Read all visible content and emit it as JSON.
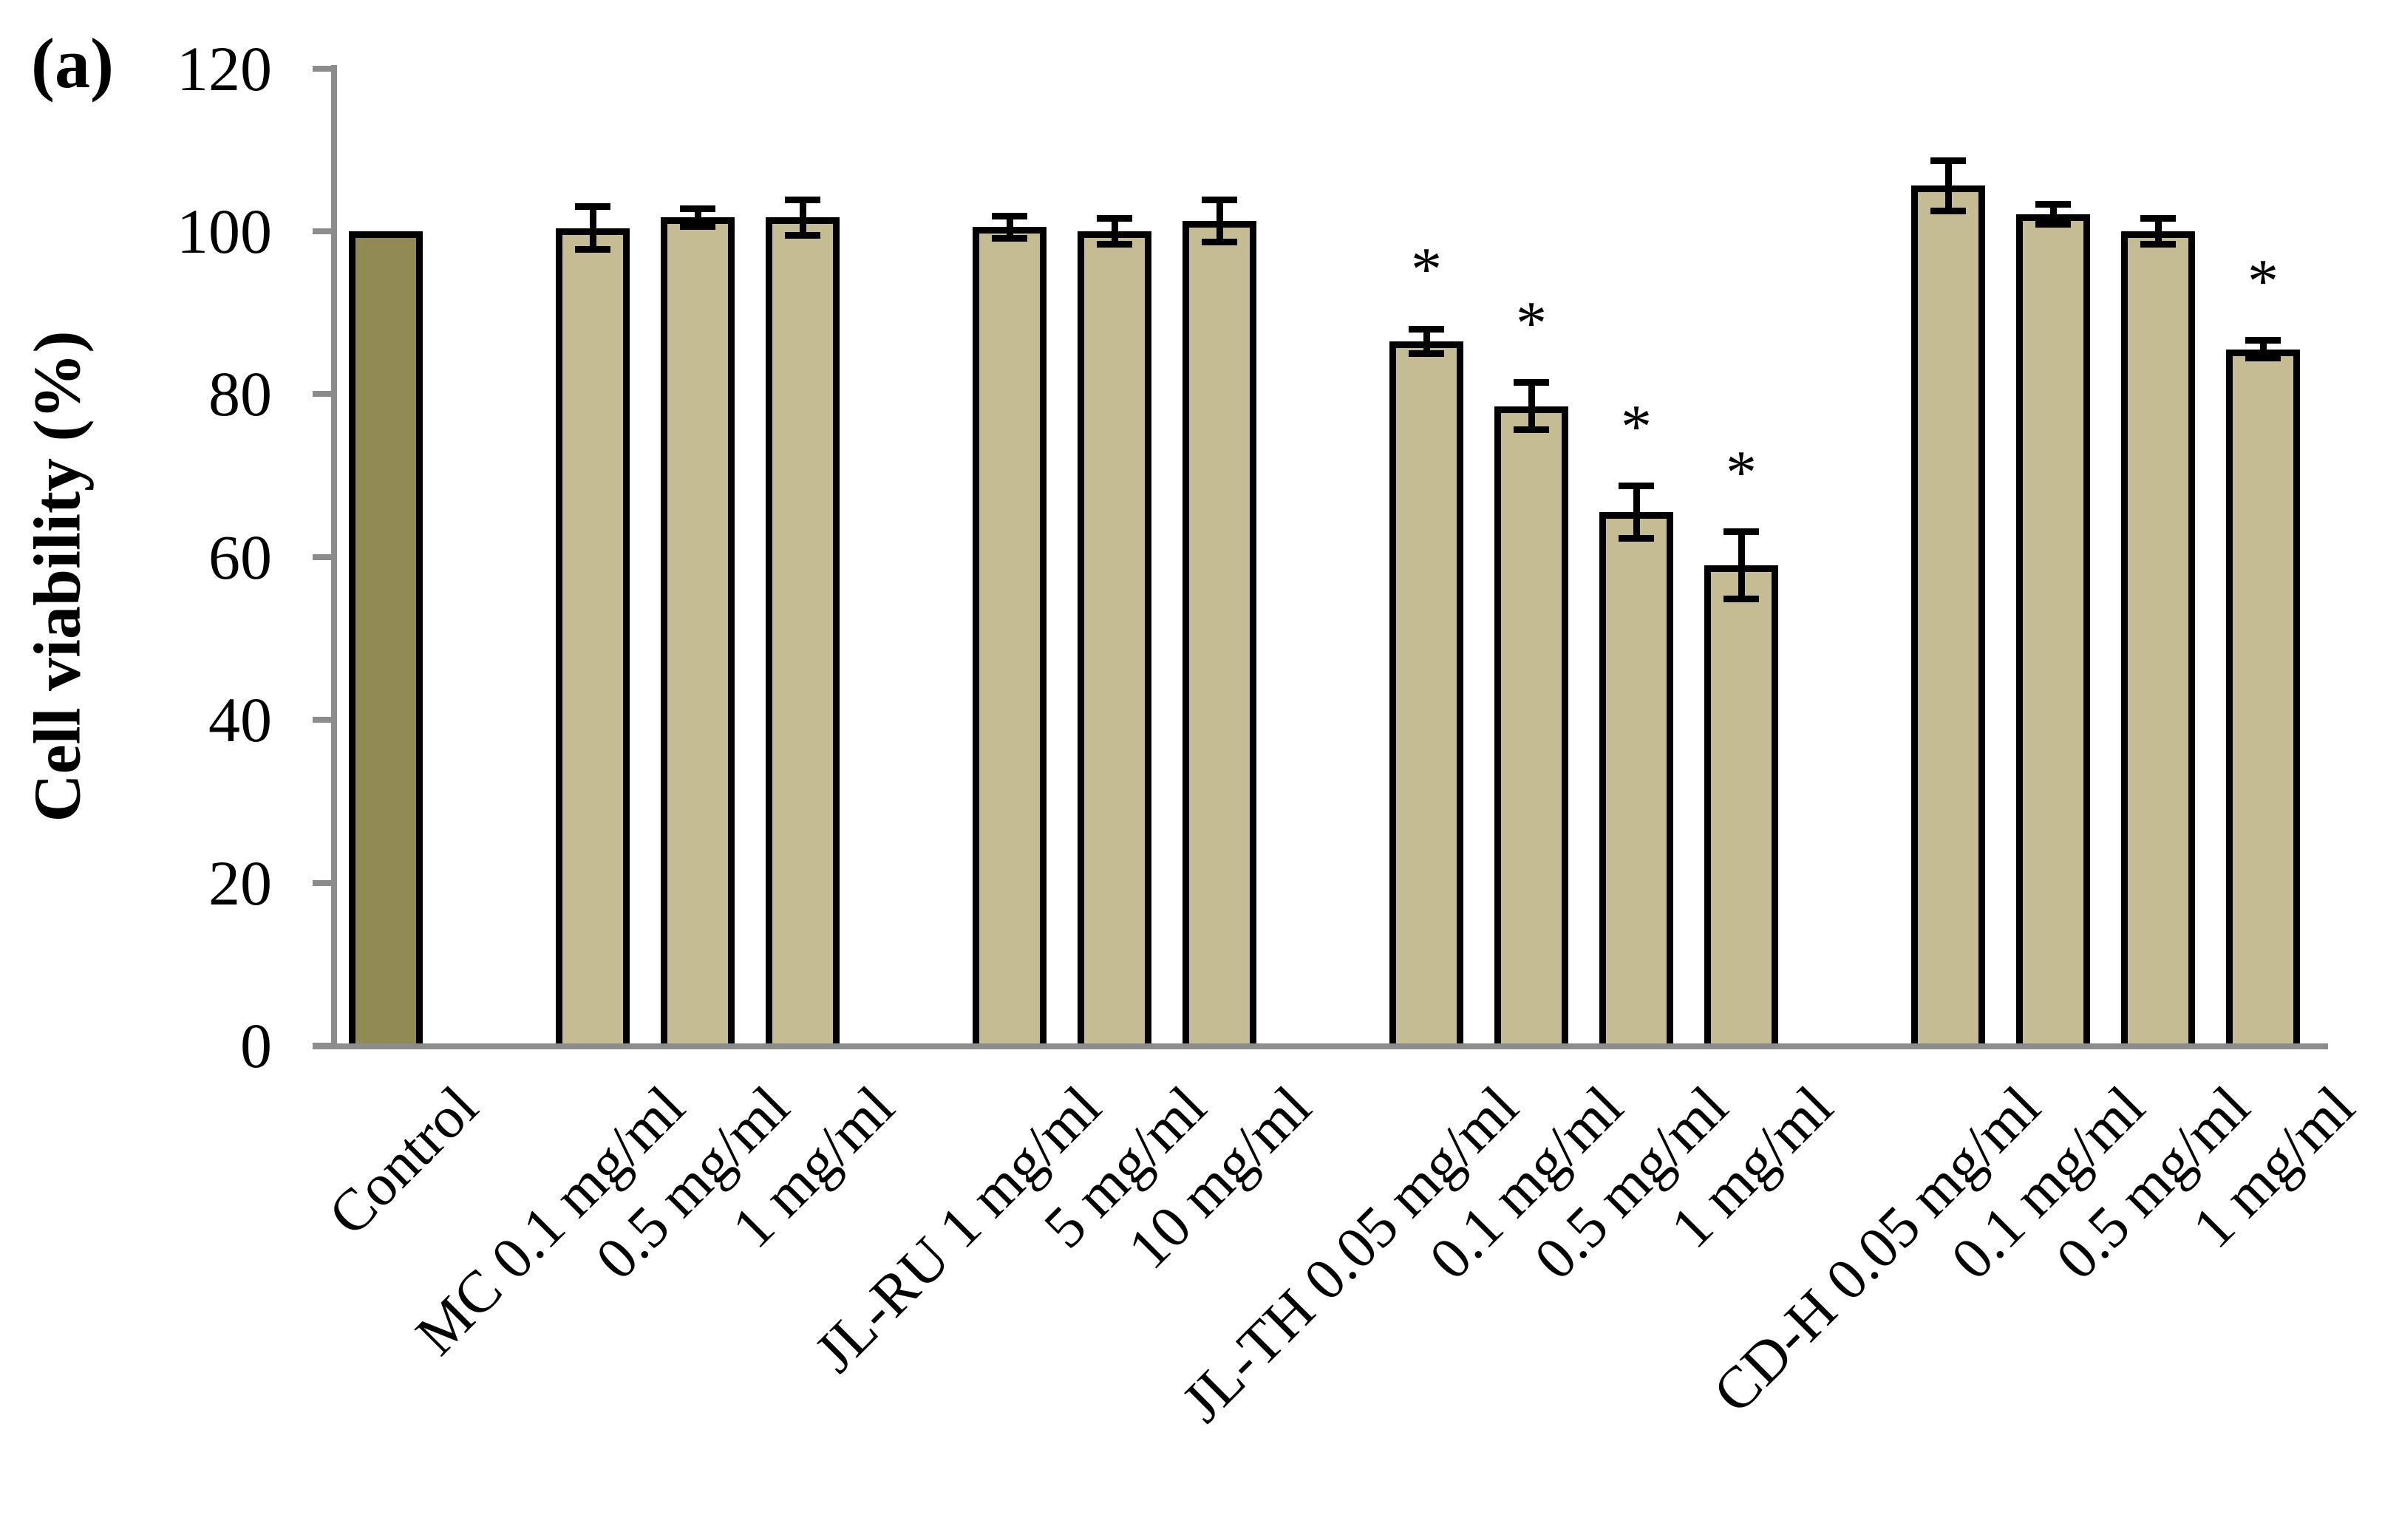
{
  "panel_label": "(a)",
  "chart_data": {
    "type": "bar",
    "title": "",
    "xlabel": "",
    "ylabel": "Cell viability (%)",
    "ylim": [
      0,
      120
    ],
    "yticks": [
      0,
      20,
      40,
      60,
      80,
      100,
      120
    ],
    "grid": false,
    "legend_position": "none",
    "categories": [
      "Control",
      "MC 0.1 mg/ml",
      "0.5 mg/ml",
      "1 mg/ml",
      "JL-RU 1 mg/ml",
      "5 mg/ml",
      "10 mg/ml",
      "JL-TH 0.05 mg/ml",
      "0.1 mg/ml",
      "0.5 mg/ml",
      "1 mg/ml",
      "CD-H 0.05 mg/ml",
      "0.1 mg/ml",
      "0.5 mg/ml",
      "1 mg/ml"
    ],
    "series": [
      {
        "name": "Cell viability (%)",
        "values": [
          100,
          100.4,
          101.7,
          101.7,
          100.5,
          100,
          101.3,
          86.5,
          78.5,
          65.5,
          59,
          105.6,
          102.1,
          100,
          85.5
        ],
        "errors": [
          0,
          2.6,
          1.1,
          2.2,
          1.4,
          1.6,
          2.6,
          1.5,
          2.9,
          3.2,
          4.1,
          3.1,
          1.2,
          1.6,
          1.1
        ],
        "significant": [
          false,
          false,
          false,
          false,
          false,
          false,
          false,
          true,
          true,
          true,
          true,
          false,
          false,
          false,
          true
        ]
      }
    ],
    "groups": [
      [
        0
      ],
      [
        1,
        2,
        3
      ],
      [
        4,
        5,
        6
      ],
      [
        7,
        8,
        9,
        10
      ],
      [
        11,
        12,
        13,
        14
      ]
    ],
    "significance_marker": "*"
  },
  "style": {
    "background": "#FFFFFF",
    "control_bar_color": "#928A54",
    "bar_color": "#C5BC93",
    "bar_border_color": "#000000",
    "error_bar_color": "#000000",
    "axis_color": "#8C8C8C",
    "text_color": "#000000"
  }
}
